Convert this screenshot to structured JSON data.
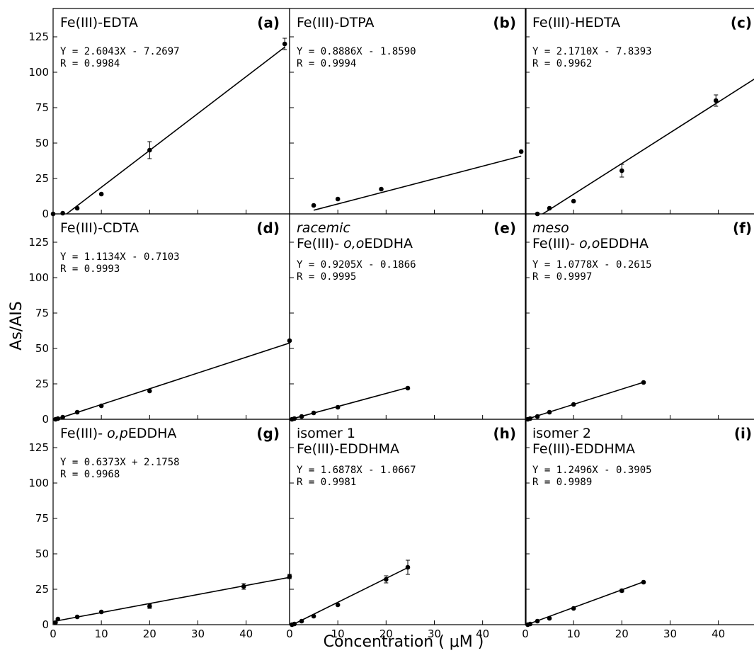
{
  "figure": {
    "ylabel": "As/AIS",
    "xlabel": "Concentration ( μM )"
  },
  "chart_data": [
    {
      "type": "scatter",
      "panel": "(a)",
      "title_lines": [
        {
          "parts": [
            {
              "text": "Fe(III)-EDTA",
              "italic": false
            }
          ]
        }
      ],
      "equation": "Y = 2.6043X - 7.2697",
      "r_text": "R = 0.9984",
      "slope": 2.6043,
      "intercept": -7.2697,
      "x": [
        0,
        2,
        5,
        10,
        20,
        48
      ],
      "y": [
        0,
        0.5,
        4,
        14,
        45,
        120
      ],
      "yerr": [
        0,
        0,
        0,
        0,
        6,
        4
      ],
      "fit_xrange": [
        2.8,
        48
      ],
      "xlim": [
        0,
        49
      ],
      "ylim": [
        0,
        145
      ],
      "xticks": [
        0,
        10,
        20,
        30,
        40
      ],
      "yticks": [
        0,
        25,
        50,
        75,
        100,
        125
      ]
    },
    {
      "type": "scatter",
      "panel": "(b)",
      "title_lines": [
        {
          "parts": [
            {
              "text": "Fe(III)-DTPA",
              "italic": false
            }
          ]
        }
      ],
      "equation": "Y = 0.8886X - 1.8590",
      "r_text": "R = 0.9994",
      "slope": 0.8886,
      "intercept": -1.859,
      "x": [
        5,
        10,
        19,
        48
      ],
      "y": [
        6,
        10.5,
        17.5,
        44
      ],
      "yerr": [
        0,
        0,
        0,
        0
      ],
      "fit_xrange": [
        5,
        48
      ],
      "xlim": [
        0,
        49
      ],
      "ylim": [
        0,
        145
      ],
      "xticks": [
        0,
        10,
        20,
        30,
        40
      ],
      "yticks": [
        0,
        25,
        50,
        75,
        100,
        125
      ]
    },
    {
      "type": "scatter",
      "panel": "(c)",
      "title_lines": [
        {
          "parts": [
            {
              "text": "Fe(III)-HEDTA",
              "italic": false
            }
          ]
        }
      ],
      "equation": "Y = 2.1710X - 7.8393",
      "r_text": "R = 0.9962",
      "slope": 2.171,
      "intercept": -7.8393,
      "x": [
        2.5,
        5,
        10,
        20,
        39.5
      ],
      "y": [
        0,
        4,
        9,
        30.5,
        80
      ],
      "yerr": [
        0,
        0,
        0,
        4.5,
        4
      ],
      "fit_xrange": [
        3.6,
        49
      ],
      "xlim": [
        0,
        49
      ],
      "ylim": [
        0,
        145
      ],
      "xticks": [
        0,
        10,
        20,
        30,
        40
      ],
      "yticks": [
        0,
        25,
        50,
        75,
        100,
        125
      ]
    },
    {
      "type": "scatter",
      "panel": "(d)",
      "title_lines": [
        {
          "parts": [
            {
              "text": "Fe(III)-CDTA",
              "italic": false
            }
          ]
        }
      ],
      "equation": "Y = 1.1134X - 0.7103",
      "r_text": "R = 0.9993",
      "slope": 1.1134,
      "intercept": -0.7103,
      "x": [
        0.5,
        1,
        2,
        5,
        10,
        20,
        49
      ],
      "y": [
        0,
        0.5,
        1.5,
        5,
        9.5,
        20,
        55.5
      ],
      "yerr": [
        0,
        0,
        0,
        0,
        0,
        0,
        0
      ],
      "fit_xrange": [
        0.5,
        49
      ],
      "xlim": [
        0,
        49
      ],
      "ylim": [
        0,
        145
      ],
      "xticks": [
        0,
        10,
        20,
        30,
        40
      ],
      "yticks": [
        0,
        25,
        50,
        75,
        100,
        125
      ]
    },
    {
      "type": "scatter",
      "panel": "(e)",
      "title_lines": [
        {
          "parts": [
            {
              "text": "racemic",
              "italic": true
            }
          ]
        },
        {
          "parts": [
            {
              "text": "Fe(III)- ",
              "italic": false
            },
            {
              "text": "o,o",
              "italic": true
            },
            {
              "text": "EDDHA",
              "italic": false
            }
          ]
        }
      ],
      "equation": "Y =  0.9205X - 0.1866",
      "r_text": "R = 0.9995",
      "slope": 0.9205,
      "intercept": -0.1866,
      "x": [
        0.5,
        1,
        2.5,
        5,
        10,
        24.5
      ],
      "y": [
        0,
        0.5,
        2,
        4.5,
        8.5,
        22
      ],
      "yerr": [
        0,
        0,
        0,
        0,
        0,
        0
      ],
      "fit_xrange": [
        0.5,
        24.5
      ],
      "xlim": [
        0,
        49
      ],
      "ylim": [
        0,
        145
      ],
      "xticks": [
        0,
        10,
        20,
        30,
        40
      ],
      "yticks": [
        0,
        25,
        50,
        75,
        100,
        125
      ]
    },
    {
      "type": "scatter",
      "panel": "(f)",
      "title_lines": [
        {
          "parts": [
            {
              "text": "meso",
              "italic": true
            }
          ]
        },
        {
          "parts": [
            {
              "text": "Fe(III)- ",
              "italic": false
            },
            {
              "text": "o,o",
              "italic": true
            },
            {
              "text": "EDDHA",
              "italic": false
            }
          ]
        }
      ],
      "equation": "Y = 1.0778X - 0.2615",
      "r_text": "R = 0.9997",
      "slope": 1.0778,
      "intercept": -0.2615,
      "x": [
        0.5,
        1,
        2.5,
        5,
        10,
        24.5
      ],
      "y": [
        0,
        0.5,
        2,
        5,
        10.5,
        26
      ],
      "yerr": [
        0,
        0,
        0,
        0,
        0,
        0
      ],
      "fit_xrange": [
        0.5,
        24.5
      ],
      "xlim": [
        0,
        49
      ],
      "ylim": [
        0,
        145
      ],
      "xticks": [
        0,
        10,
        20,
        30,
        40
      ],
      "yticks": [
        0,
        25,
        50,
        75,
        100,
        125
      ]
    },
    {
      "type": "scatter",
      "panel": "(g)",
      "title_lines": [
        {
          "parts": [
            {
              "text": "Fe(III)- ",
              "italic": false
            },
            {
              "text": "o,p",
              "italic": true
            },
            {
              "text": "EDDHA",
              "italic": false
            }
          ]
        }
      ],
      "equation": "Y = 0.6373X + 2.1758",
      "r_text": "R = 0.9968",
      "slope": 0.6373,
      "intercept": 2.1758,
      "x": [
        0.5,
        1,
        5,
        10,
        20,
        39.5,
        49
      ],
      "y": [
        1.5,
        4,
        5.5,
        9,
        13,
        27,
        34
      ],
      "yerr": [
        0,
        0,
        0,
        0,
        1.5,
        2,
        1.5
      ],
      "fit_xrange": [
        0,
        49
      ],
      "xlim": [
        0,
        49
      ],
      "ylim": [
        0,
        145
      ],
      "xticks": [
        0,
        10,
        20,
        30,
        40
      ],
      "yticks": [
        0,
        25,
        50,
        75,
        100,
        125
      ]
    },
    {
      "type": "scatter",
      "panel": "(h)",
      "title_lines": [
        {
          "parts": [
            {
              "text": "isomer 1",
              "italic": false
            }
          ]
        },
        {
          "parts": [
            {
              "text": "Fe(III)-EDDHMA",
              "italic": false
            }
          ]
        }
      ],
      "equation": "Y = 1.6878X - 1.0667",
      "r_text": "R = 0.9981",
      "slope": 1.6878,
      "intercept": -1.0667,
      "x": [
        0.5,
        1,
        2.5,
        5,
        10,
        20,
        24.5
      ],
      "y": [
        0,
        0.5,
        2.5,
        6,
        14,
        32,
        40.5
      ],
      "yerr": [
        0,
        0,
        0,
        0,
        0,
        2.5,
        5
      ],
      "fit_xrange": [
        0.6,
        24.5
      ],
      "xlim": [
        0,
        49
      ],
      "ylim": [
        0,
        145
      ],
      "xticks": [
        0,
        10,
        20,
        30,
        40
      ],
      "yticks": [
        0,
        25,
        50,
        75,
        100,
        125
      ]
    },
    {
      "type": "scatter",
      "panel": "(i)",
      "title_lines": [
        {
          "parts": [
            {
              "text": "isomer 2",
              "italic": false
            }
          ]
        },
        {
          "parts": [
            {
              "text": "Fe(III)-EDDHMA",
              "italic": false
            }
          ]
        }
      ],
      "equation": "Y =  1.2496X - 0.3905",
      "r_text": "R = 0.9989",
      "slope": 1.2496,
      "intercept": -0.3905,
      "x": [
        0.5,
        1,
        2.5,
        5,
        10,
        20,
        24.5
      ],
      "y": [
        0,
        0.5,
        2.5,
        4.5,
        11.5,
        24,
        30
      ],
      "yerr": [
        0,
        0,
        0,
        0,
        0,
        1,
        0
      ],
      "fit_xrange": [
        0.5,
        24.5
      ],
      "xlim": [
        0,
        49
      ],
      "ylim": [
        0,
        145
      ],
      "xticks": [
        0,
        10,
        20,
        30,
        40
      ],
      "yticks": [
        0,
        25,
        50,
        75,
        100,
        125
      ]
    }
  ]
}
